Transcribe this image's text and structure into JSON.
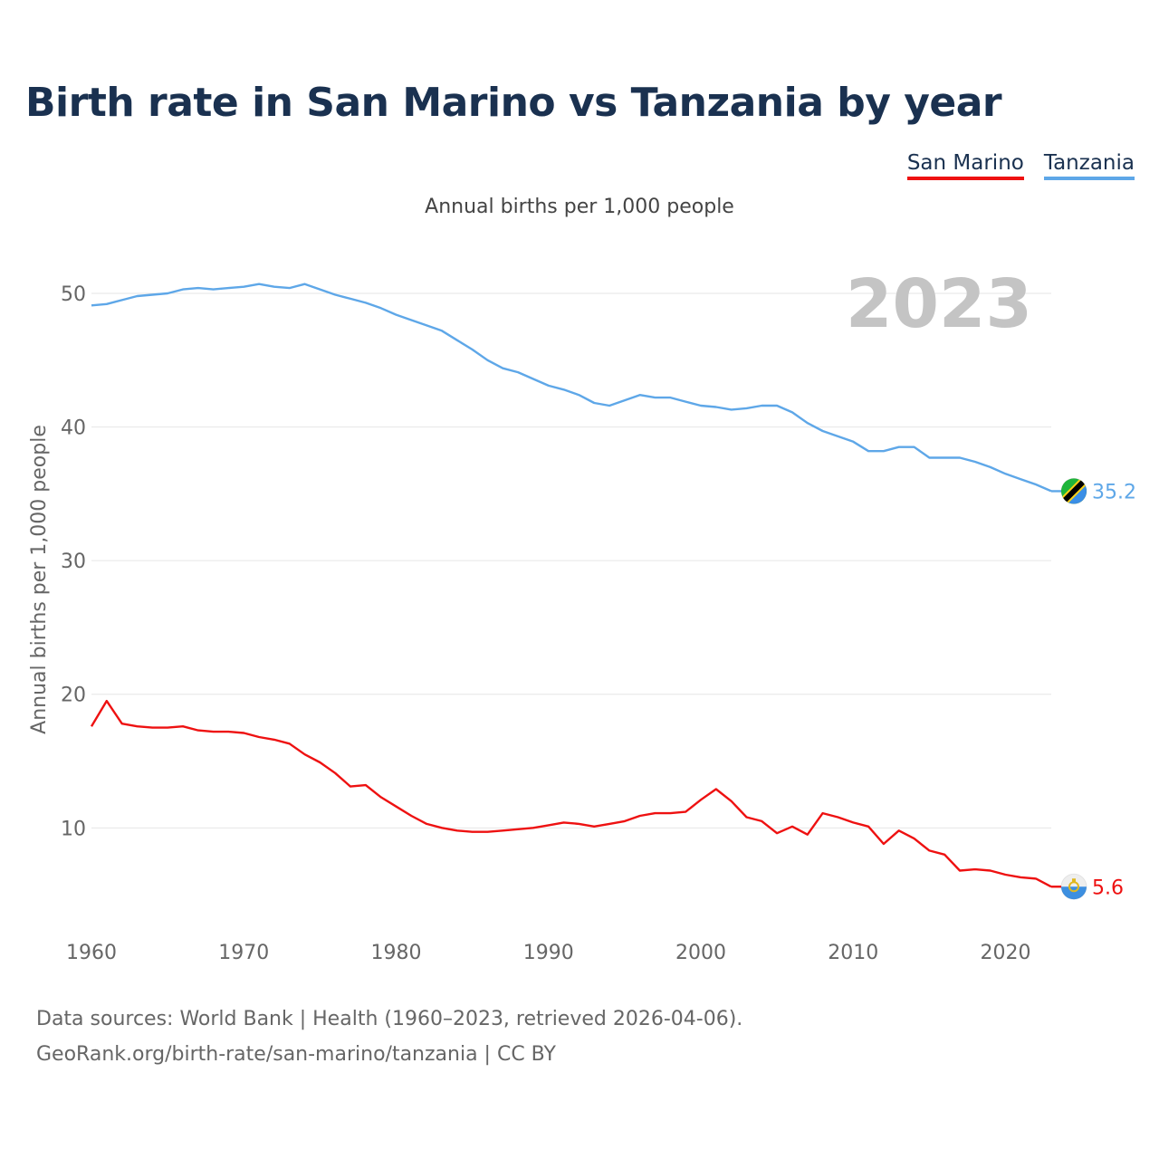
{
  "colors": {
    "san_marino": "#ee1111",
    "tanzania": "#5ea7e8",
    "title": "#1a3150",
    "grid": "#e6e6e6",
    "year_watermark": "#c4c4c4",
    "axis_text": "#666666"
  },
  "legend": {
    "san_marino": "San Marino",
    "tanzania": "Tanzania"
  },
  "footer": {
    "line1": "Data sources: World Bank | Health (1960–2023, retrieved 2026-04-06).",
    "line2": "GeoRank.org/birth-rate/san-marino/tanzania | CC BY"
  },
  "chart_data": {
    "type": "line",
    "title": "Birth rate in San Marino vs Tanzania by year",
    "subtitle": "Annual births per 1,000 people",
    "ylabel": "Annual births per 1,000 people",
    "xlabel": "",
    "year_label": "2023",
    "xlim": [
      1960,
      2023
    ],
    "ylim": [
      2.5,
      54
    ],
    "x_ticks": [
      1960,
      1970,
      1980,
      1990,
      2000,
      2010,
      2020
    ],
    "y_ticks": [
      10,
      20,
      30,
      40,
      50
    ],
    "grid": true,
    "legend_position": "top-right",
    "x": [
      1960,
      1961,
      1962,
      1963,
      1964,
      1965,
      1966,
      1967,
      1968,
      1969,
      1970,
      1971,
      1972,
      1973,
      1974,
      1975,
      1976,
      1977,
      1978,
      1979,
      1980,
      1981,
      1982,
      1983,
      1984,
      1985,
      1986,
      1987,
      1988,
      1989,
      1990,
      1991,
      1992,
      1993,
      1994,
      1995,
      1996,
      1997,
      1998,
      1999,
      2000,
      2001,
      2002,
      2003,
      2004,
      2005,
      2006,
      2007,
      2008,
      2009,
      2010,
      2011,
      2012,
      2013,
      2014,
      2015,
      2016,
      2017,
      2018,
      2019,
      2020,
      2021,
      2022,
      2023
    ],
    "series": [
      {
        "name": "San Marino",
        "color": "#ee1111",
        "end_label": "5.6",
        "flag": "san-marino-flag-icon",
        "values": [
          17.6,
          19.5,
          17.8,
          17.6,
          17.5,
          17.5,
          17.6,
          17.3,
          17.2,
          17.2,
          17.1,
          16.8,
          16.6,
          16.3,
          15.5,
          14.9,
          14.1,
          13.1,
          13.2,
          12.3,
          11.6,
          10.9,
          10.3,
          10.0,
          9.8,
          9.7,
          9.7,
          9.8,
          9.9,
          10.0,
          10.2,
          10.4,
          10.3,
          10.1,
          10.3,
          10.5,
          10.9,
          11.1,
          11.1,
          11.2,
          12.1,
          12.9,
          12.0,
          10.8,
          10.5,
          9.6,
          10.1,
          9.5,
          11.1,
          10.8,
          10.4,
          10.1,
          8.8,
          9.8,
          9.2,
          8.3,
          8.0,
          6.8,
          6.9,
          6.8,
          6.5,
          6.3,
          6.2,
          5.6
        ]
      },
      {
        "name": "Tanzania",
        "color": "#5ea7e8",
        "end_label": "35.2",
        "flag": "tanzania-flag-icon",
        "values": [
          49.1,
          49.2,
          49.5,
          49.8,
          49.9,
          50.0,
          50.3,
          50.4,
          50.3,
          50.4,
          50.5,
          50.7,
          50.5,
          50.4,
          50.7,
          50.3,
          49.9,
          49.6,
          49.3,
          48.9,
          48.4,
          48.0,
          47.6,
          47.2,
          46.5,
          45.8,
          45.0,
          44.4,
          44.1,
          43.6,
          43.1,
          42.8,
          42.4,
          41.8,
          41.6,
          42.0,
          42.4,
          42.2,
          42.2,
          41.9,
          41.6,
          41.5,
          41.3,
          41.4,
          41.6,
          41.6,
          41.1,
          40.3,
          39.7,
          39.3,
          38.9,
          38.2,
          38.2,
          38.5,
          38.5,
          37.7,
          37.7,
          37.7,
          37.4,
          37.0,
          36.5,
          36.1,
          35.7,
          35.2
        ]
      }
    ]
  }
}
